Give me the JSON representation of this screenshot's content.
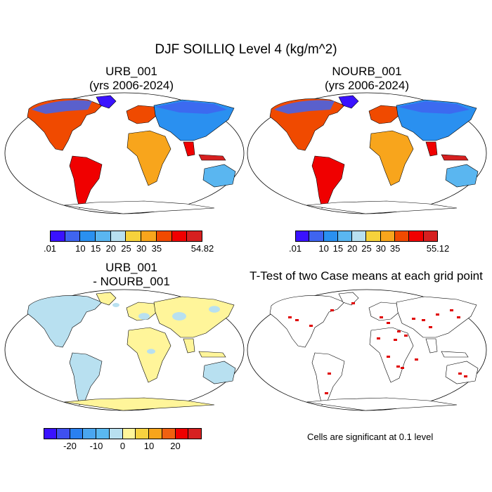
{
  "figure": {
    "title": "DJF SOILLIQ Level 4 (kg/m^2)"
  },
  "panels": [
    {
      "id": "urb",
      "title_line1": "URB_001",
      "title_line2": "(yrs 2006-2024)",
      "colorbar": {
        "colors": [
          "#3a12ff",
          "#3f64f0",
          "#2a90f0",
          "#5ab6f0",
          "#b8e0f0",
          "#f6d23c",
          "#f8a51c",
          "#f04a00",
          "#f00000",
          "#d62020"
        ],
        "labels": [
          ".01",
          "10",
          "15",
          "20",
          "25",
          "30",
          "35",
          "54.82"
        ],
        "label_boundaries": [
          0,
          2,
          3,
          4,
          5,
          6,
          7,
          10
        ]
      }
    },
    {
      "id": "nourb",
      "title_line1": "NOURB_001",
      "title_line2": "(yrs 2006-2024)",
      "colorbar": {
        "colors": [
          "#3a12ff",
          "#3f64f0",
          "#2a90f0",
          "#5ab6f0",
          "#b8e0f0",
          "#f6d23c",
          "#f8a51c",
          "#f04a00",
          "#f00000",
          "#d62020"
        ],
        "labels": [
          ".01",
          "10",
          "15",
          "20",
          "25",
          "30",
          "35",
          "55.12"
        ],
        "label_boundaries": [
          0,
          2,
          3,
          4,
          5,
          6,
          7,
          10
        ]
      }
    },
    {
      "id": "diff",
      "title_line1": "URB_001",
      "title_line2": "- NOURB_001",
      "colorbar": {
        "colors": [
          "#3a12ff",
          "#3f50f0",
          "#2a80f0",
          "#4aa6f0",
          "#5ab8f0",
          "#b8e0f0",
          "#fff59a",
          "#f8d240",
          "#f8a51c",
          "#f06010",
          "#f00000",
          "#d62020"
        ],
        "labels": [
          "-20",
          "-10",
          "0",
          "10",
          "20"
        ],
        "label_boundaries": [
          2,
          4,
          6,
          8,
          10
        ]
      }
    },
    {
      "id": "ttest",
      "title_line1": "T-Test of two Case means at each grid point",
      "note": "Cells are significant at 0.1 level"
    }
  ]
}
